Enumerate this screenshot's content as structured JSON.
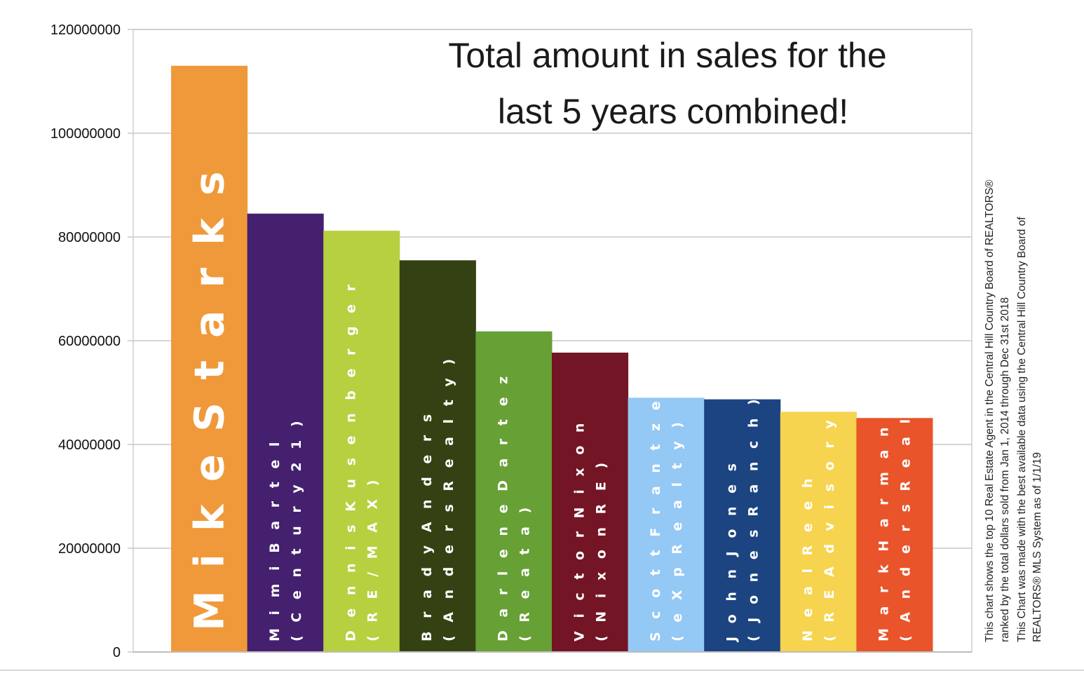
{
  "chart_data": {
    "type": "bar",
    "title_lines": [
      "Total amount in sales for the",
      "last 5 years combined!"
    ],
    "ylim": [
      0,
      120000000
    ],
    "yticks": [
      "0",
      "20000000",
      "40000000",
      "60000000",
      "80000000",
      "100000000",
      "120000000"
    ],
    "grid": true,
    "bars": [
      {
        "label": "M i k e   S t a r k s",
        "value": 113000000,
        "color": "#F0993A"
      },
      {
        "label": "M i m i   B a r t e l",
        "sublabel": "( C e n t u r y   2 1 )",
        "value": 84500000,
        "color": "#45206F"
      },
      {
        "label": "D e n n i s   K u s e n b e r g e r",
        "sublabel": "( R E / M A X )",
        "value": 81200000,
        "color": "#B7D040"
      },
      {
        "label": "B r a d y   A n d e r s",
        "sublabel": "( A n d e r s   R e a l t y )",
        "value": 75500000,
        "color": "#344213"
      },
      {
        "label": "D a r l e n e   D a r t e z",
        "sublabel": "( R e a t a )",
        "value": 61800000,
        "color": "#67A035"
      },
      {
        "label": "V i c t o r   N i x o n",
        "sublabel": "( N i x o n   R E )",
        "value": 57700000,
        "color": "#731524"
      },
      {
        "label": "S c o t t   F r a n t z e n",
        "sublabel": "( e X p   R e a l t y )",
        "value": 49000000,
        "color": "#94C8F5"
      },
      {
        "label": "J o h n   J o n e s",
        "sublabel": "( J o n e s   R a n c h )",
        "value": 48700000,
        "color": "#1B4481"
      },
      {
        "label": "N e a l   R e e h",
        "sublabel": "( R E   A d v i s o r y )",
        "value": 46300000,
        "color": "#F6D450"
      },
      {
        "label": "M a r k   H a r m a n",
        "sublabel": "( A n d e r s   R e a l t y )",
        "value": 45100000,
        "color": "#E9542A"
      }
    ],
    "side_note_lines": [
      "This chart shows  the top 10 Real Estate Agent in the Central Hill Country Board of REALTORS®",
      "ranked by the total dollars sold from Jan 1, 2014 through Dec 31st  2018",
      "This Chart was made with the best available data using the Central Hill Country Board of",
      "REALTORS® MLS System as of 1/1/19"
    ]
  }
}
